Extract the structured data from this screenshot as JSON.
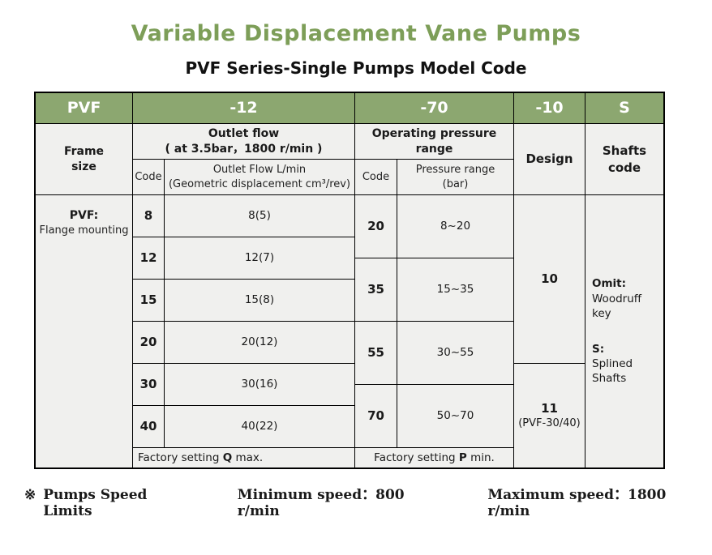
{
  "title": "Variable Displacement Vane Pumps",
  "subtitle": "PVF Series-Single Pumps Model Code",
  "colors": {
    "title_green": "#7d9e58",
    "header_green": "#8ca770",
    "cell_background": "#f0f0ee",
    "border": "#000000"
  },
  "table": {
    "code_header": {
      "pvf": "PVF",
      "flow": "-12",
      "pressure": "-70",
      "design": "-10",
      "shafts": "S"
    },
    "frame": {
      "header": "Frame\nsize",
      "body_title": "PVF:",
      "body_text": "Flange mounting"
    },
    "flow": {
      "header_line1": "Outlet flow",
      "header_line2": "( at 3.5bar，1800 r/min )",
      "code_label": "Code",
      "value_label_line1": "Outlet Flow L/min",
      "value_label_line2": "(Geometric displacement cm³/rev)",
      "rows": [
        {
          "code": "8",
          "value": "8(5)"
        },
        {
          "code": "12",
          "value": "12(7)"
        },
        {
          "code": "15",
          "value": "15(8)"
        },
        {
          "code": "20",
          "value": "20(12)"
        },
        {
          "code": "30",
          "value": "30(16)"
        },
        {
          "code": "40",
          "value": "40(22)"
        }
      ],
      "factory_prefix": "Factory setting ",
      "factory_bold": "Q",
      "factory_suffix": " max."
    },
    "pressure": {
      "header": "Operating pressure range",
      "code_label": "Code",
      "value_label_line1": "Pressure range",
      "value_label_line2": "(bar)",
      "rows": [
        {
          "code": "20",
          "value": "8~20"
        },
        {
          "code": "35",
          "value": "15~35"
        },
        {
          "code": "55",
          "value": "30~55"
        },
        {
          "code": "70",
          "value": "50~70"
        }
      ],
      "factory_prefix": "Factory setting ",
      "factory_bold": "P",
      "factory_suffix": " min."
    },
    "design": {
      "header": "Design",
      "cells": [
        {
          "code": "10",
          "note": ""
        },
        {
          "code": "11",
          "note": "(PVF-30/40)"
        }
      ]
    },
    "shafts": {
      "header": "Shafts code",
      "items": [
        {
          "key": "Omit:",
          "desc": "Woodruff key"
        },
        {
          "key": "S:",
          "desc": "Splined Shafts"
        }
      ]
    }
  },
  "footer": {
    "note_symbol": "※",
    "label": "Pumps Speed Limits",
    "min": "Minimum speed：800 r/min",
    "max": "Maximum speed：1800 r/min"
  }
}
